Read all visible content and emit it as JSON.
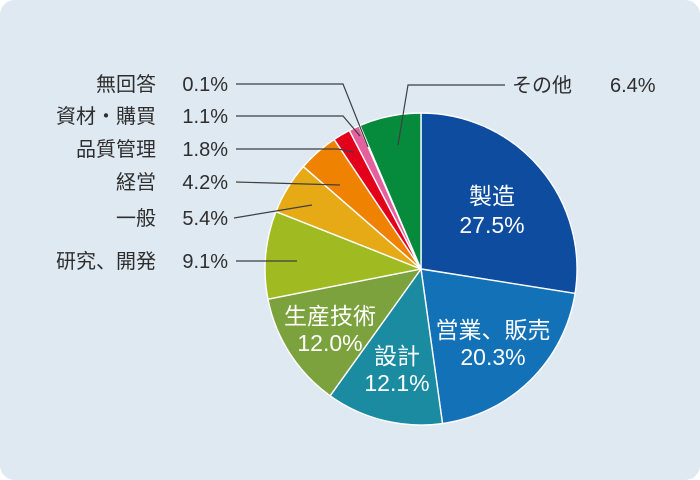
{
  "colors": {
    "background": "#dfe9f2",
    "text": "#2e2e2e",
    "leader_line": "#3f3f3f",
    "inside_text": "#ffffff",
    "separator": "#ffffff"
  },
  "chart_data": {
    "type": "pie",
    "title": "",
    "start_angle_deg": 0,
    "direction": "clockwise",
    "value_suffix": "%",
    "legend_position": "callout-labels",
    "segments": [
      {
        "label": "製造",
        "value": 27.5,
        "color": "#0d4c9e",
        "label_placement": "inside"
      },
      {
        "label": "営業、販売",
        "value": 20.3,
        "color": "#1271b7",
        "label_placement": "inside"
      },
      {
        "label": "設計",
        "value": 12.1,
        "color": "#1b8ba1",
        "label_placement": "inside"
      },
      {
        "label": "生産技術",
        "value": 12.0,
        "color": "#7ba23d",
        "label_placement": "inside"
      },
      {
        "label": "研究、開発",
        "value": 9.1,
        "color": "#9fbb21",
        "label_placement": "outside-left"
      },
      {
        "label": "一般",
        "value": 5.4,
        "color": "#e5aa15",
        "label_placement": "outside-left"
      },
      {
        "label": "経営",
        "value": 4.2,
        "color": "#ef8200",
        "label_placement": "outside-left"
      },
      {
        "label": "品質管理",
        "value": 1.8,
        "color": "#e3001b",
        "label_placement": "outside-left"
      },
      {
        "label": "資材・購買",
        "value": 1.1,
        "color": "#e4619e",
        "label_placement": "outside-left"
      },
      {
        "label": "無回答",
        "value": 0.1,
        "color": "#8fd2f4",
        "label_placement": "outside-left"
      },
      {
        "label": "その他",
        "value": 6.4,
        "color": "#068b3d",
        "label_placement": "outside-right"
      }
    ]
  }
}
